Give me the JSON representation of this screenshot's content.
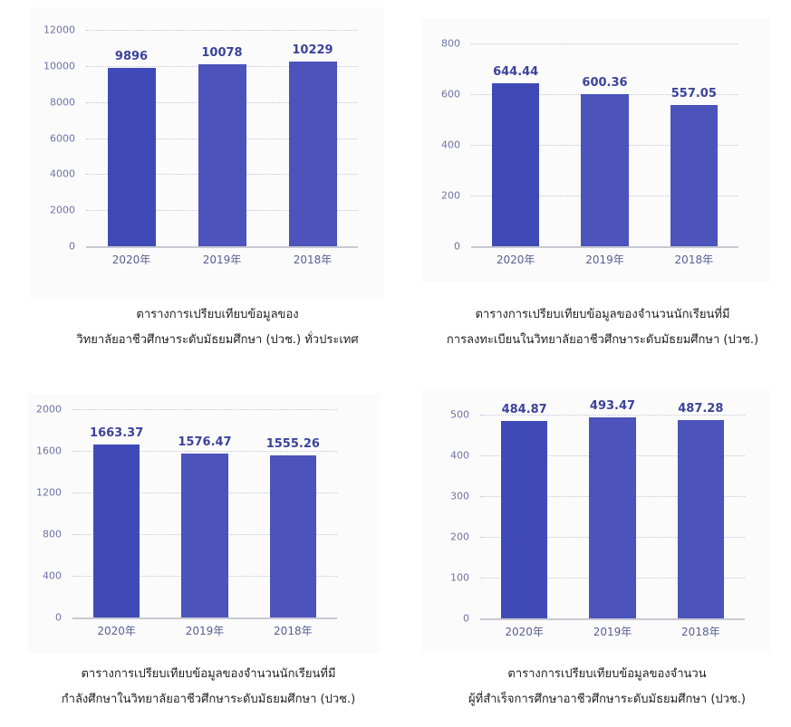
{
  "colors": {
    "bar_primary": "#3f4ab8",
    "bar_secondary": "#4c53bb",
    "value_label": "#3c4399",
    "tick_label": "#6f74a3",
    "panel_bg": "#fbfbfc"
  },
  "chart_data": [
    {
      "type": "bar",
      "title": "ตารางการเปรียบเทียบข้อมูลของ วิทยาลัยอาชีวศึกษาระดับมัธยมศึกษา (ปวช.) ทั่วประเทศ",
      "categories": [
        "2020年",
        "2019年",
        "2018年"
      ],
      "values": [
        9896,
        10078,
        10229
      ],
      "value_labels": [
        "9896",
        "10078",
        "10229"
      ],
      "yticks": [
        "0",
        "2000",
        "4000",
        "6000",
        "8000",
        "10000",
        "12000"
      ],
      "ylim": [
        0,
        12000
      ],
      "xlabel": "",
      "ylabel": "",
      "grid": true,
      "legend": null
    },
    {
      "type": "bar",
      "title": "ตารางการเปรียบเทียบข้อมูลของจำนวนนักเรียนที่มี การลงทะเบียนในวิทยาลัยอาชีวศึกษาระดับมัธยมศึกษา (ปวช.)",
      "categories": [
        "2020年",
        "2019年",
        "2018年"
      ],
      "values": [
        644.44,
        600.36,
        557.05
      ],
      "value_labels": [
        "644.44",
        "600.36",
        "557.05"
      ],
      "yticks": [
        "0",
        "200",
        "400",
        "600",
        "800"
      ],
      "ylim": [
        0,
        800
      ],
      "xlabel": "",
      "ylabel": "",
      "grid": true,
      "legend": null
    },
    {
      "type": "bar",
      "title": "ตารางการเปรียบเทียบข้อมูลของจำนวนนักเรียนที่มี กำลังศึกษาในวิทยาลัยอาชีวศึกษาระดับมัธยมศึกษา (ปวช.)",
      "categories": [
        "2020年",
        "2019年",
        "2018年"
      ],
      "values": [
        1663.37,
        1576.47,
        1555.26
      ],
      "value_labels": [
        "1663.37",
        "1576.47",
        "1555.26"
      ],
      "yticks": [
        "0",
        "400",
        "800",
        "1200",
        "1600",
        "2000"
      ],
      "ylim": [
        0,
        2000
      ],
      "xlabel": "",
      "ylabel": "",
      "grid": true,
      "legend": null
    },
    {
      "type": "bar",
      "title": "ตารางการเปรียบเทียบข้อมูลของจำนวน ผู้ที่สำเร็จการศึกษาอาชีวศึกษาระดับมัธยมศึกษา (ปวช.)",
      "categories": [
        "2020年",
        "2019年",
        "2018年"
      ],
      "values": [
        484.87,
        493.47,
        487.28
      ],
      "value_labels": [
        "484.87",
        "493.47",
        "487.28"
      ],
      "yticks": [
        "0",
        "100",
        "200",
        "300",
        "400",
        "500"
      ],
      "ylim": [
        0,
        520
      ],
      "xlabel": "",
      "ylabel": "",
      "grid": true,
      "legend": null
    }
  ],
  "captions": [
    [
      "ตารางการเปรียบเทียบข้อมูลของ",
      "วิทยาลัยอาชีวศึกษาระดับมัธยมศึกษา (ปวช.) ทั่วประเทศ"
    ],
    [
      "ตารางการเปรียบเทียบข้อมูลของจำนวนนักเรียนที่มี",
      "การลงทะเบียนในวิทยาลัยอาชีวศึกษาระดับมัธยมศึกษา (ปวช.)"
    ],
    [
      "ตารางการเปรียบเทียบข้อมูลของจำนวนนักเรียนที่มี",
      "กำลังศึกษาในวิทยาลัยอาชีวศึกษาระดับมัธยมศึกษา (ปวช.)"
    ],
    [
      "ตารางการเปรียบเทียบข้อมูลของจำนวน",
      "ผู้ที่สำเร็จการศึกษาอาชีวศึกษาระดับมัธยมศึกษา (ปวช.)"
    ]
  ]
}
